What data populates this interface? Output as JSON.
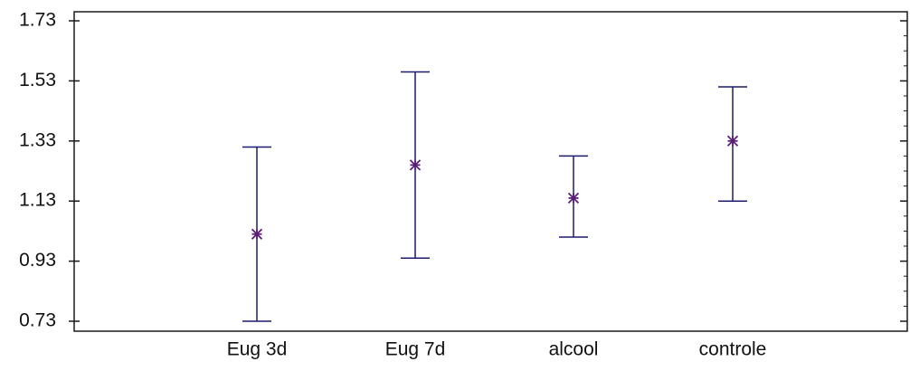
{
  "chart_data": {
    "type": "scatter",
    "subtype": "error-bar",
    "title": "",
    "xlabel": "",
    "ylabel": "",
    "categories": [
      "Eug 3d",
      "Eug 7d",
      "alcool",
      "controle"
    ],
    "points": [
      {
        "category": "Eug 3d",
        "mean": 1.02,
        "lower": 0.73,
        "upper": 1.31
      },
      {
        "category": "Eug 7d",
        "mean": 1.25,
        "lower": 0.94,
        "upper": 1.56
      },
      {
        "category": "alcool",
        "mean": 1.14,
        "lower": 1.01,
        "upper": 1.28
      },
      {
        "category": "controle",
        "mean": 1.33,
        "lower": 1.13,
        "upper": 1.51
      }
    ],
    "yticks": [
      0.73,
      0.93,
      1.13,
      1.33,
      1.53,
      1.73
    ],
    "ytick_labels": [
      "0.73",
      "0.93",
      "1.13",
      "1.33",
      "1.53",
      "1.73"
    ],
    "ylim": [
      0.73,
      1.73
    ],
    "grid": false,
    "colors": {
      "bar": "#1c1c6e",
      "marker": "#5a1e78",
      "axis": "#1a1a1a"
    }
  }
}
